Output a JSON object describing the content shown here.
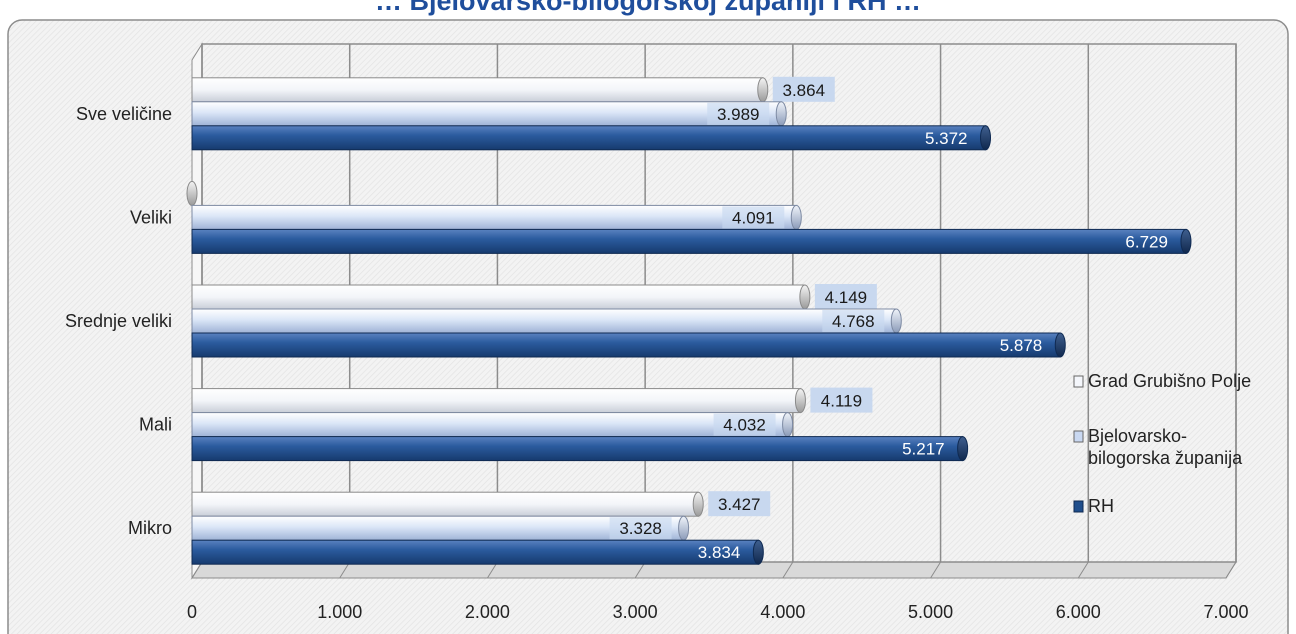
{
  "chart_data": {
    "type": "bar",
    "orientation": "horizontal",
    "title": "… Bjelovarsko-bilogorskoj županiji i RH …",
    "categories": [
      "Sve veličine",
      "Veliki",
      "Srednje veliki",
      "Mali",
      "Mikro"
    ],
    "series": [
      {
        "name": "Grad Grubišno Polje",
        "values": [
          3864,
          0,
          4149,
          4119,
          3427
        ],
        "labels": [
          "3.864",
          "",
          "4.149",
          "4.119",
          "3.427"
        ],
        "color": "#f4f6fb"
      },
      {
        "name": "Bjelovarsko-bilogorska županija",
        "values": [
          3989,
          4091,
          4768,
          4032,
          3328
        ],
        "labels": [
          "3.989",
          "4.091",
          "4.768",
          "4.032",
          "3.328"
        ],
        "color": "#c9d8f1"
      },
      {
        "name": "RH",
        "values": [
          5372,
          6729,
          5878,
          5217,
          3834
        ],
        "labels": [
          "5.372",
          "6.729",
          "5.878",
          "5.217",
          "3.834"
        ],
        "color": "#1f4e8c"
      }
    ],
    "xlim": [
      0,
      7000
    ],
    "xticks": [
      0,
      1000,
      2000,
      3000,
      4000,
      5000,
      6000,
      7000
    ],
    "xtick_labels": [
      "0",
      "1.000",
      "2.000",
      "3.000",
      "4.000",
      "5.000",
      "6.000",
      "7.000"
    ],
    "grid": true,
    "legend_position": "right"
  }
}
